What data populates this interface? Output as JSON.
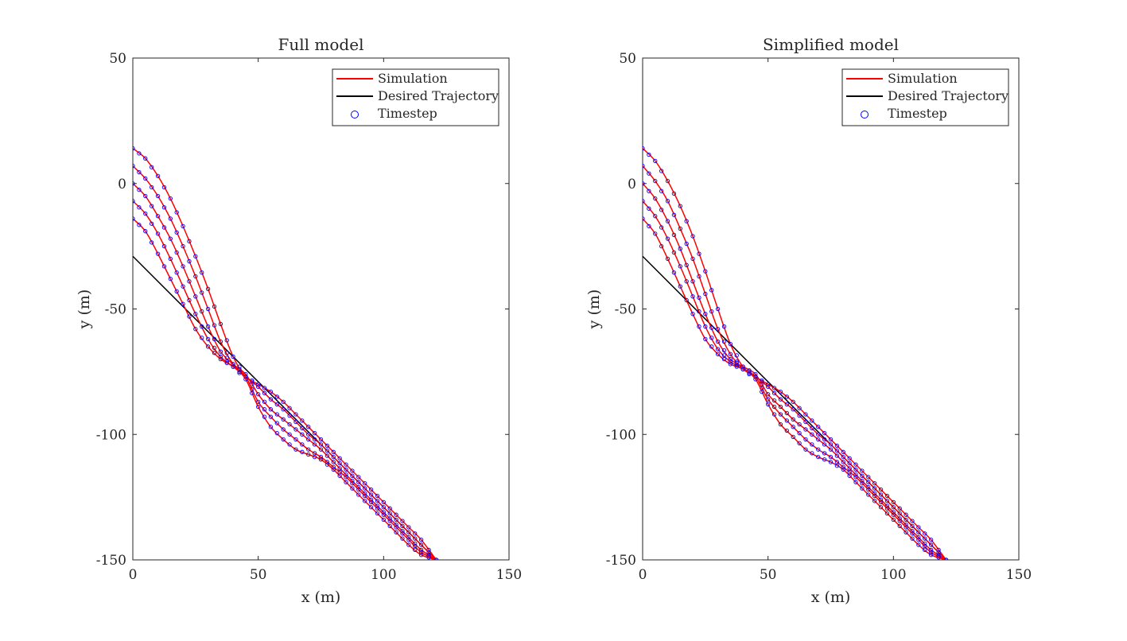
{
  "chart_data": [
    {
      "type": "line",
      "title": "Full model",
      "xlabel": "x (m)",
      "ylabel": "y (m)",
      "xlim": [
        0,
        150
      ],
      "ylim": [
        -150,
        50
      ],
      "xticks": [
        "0",
        "50",
        "100",
        "150"
      ],
      "yticks": [
        "-150",
        "-100",
        "-50",
        "0",
        "50"
      ],
      "grid": false,
      "legend_position": "top-right",
      "legend": [
        {
          "label": "Simulation",
          "color": "#ff0000",
          "style": "line"
        },
        {
          "label": "Desired Trajectory",
          "color": "#000000",
          "style": "line"
        },
        {
          "label": "Timestep",
          "color": "#0000ff",
          "style": "circle"
        }
      ],
      "desired_trajectory": {
        "x": [
          0,
          121
        ],
        "y": [
          -29,
          -150
        ]
      },
      "series": [
        {
          "x": [
            0,
            5,
            10,
            15,
            20,
            25,
            30,
            35,
            40,
            45,
            50,
            55,
            60,
            65,
            70,
            75,
            80,
            85,
            90,
            95,
            100,
            105,
            110,
            115,
            121
          ],
          "y": [
            14,
            10,
            3,
            -6,
            -17,
            -29,
            -42,
            -56,
            -69,
            -77,
            -80,
            -83,
            -87,
            -92,
            -97,
            -102,
            -107,
            -112,
            -117,
            -122,
            -127,
            -132,
            -137,
            -142,
            -150
          ]
        },
        {
          "x": [
            0,
            5,
            10,
            15,
            20,
            25,
            30,
            35,
            40,
            45,
            50,
            55,
            60,
            65,
            70,
            75,
            80,
            85,
            90,
            95,
            100,
            105,
            110,
            115,
            121
          ],
          "y": [
            7,
            2,
            -5,
            -14,
            -25,
            -37,
            -50,
            -63,
            -72,
            -77,
            -81,
            -86,
            -90,
            -95,
            -100,
            -104,
            -109,
            -114,
            -119,
            -124,
            -129,
            -134,
            -139,
            -144,
            -150
          ]
        },
        {
          "x": [
            0,
            5,
            10,
            15,
            20,
            25,
            30,
            35,
            40,
            45,
            50,
            55,
            60,
            65,
            70,
            75,
            80,
            85,
            90,
            95,
            100,
            105,
            110,
            115,
            121
          ],
          "y": [
            0,
            -5,
            -13,
            -22,
            -33,
            -45,
            -57,
            -67,
            -72,
            -76,
            -84,
            -90,
            -94,
            -98,
            -102,
            -106,
            -111,
            -116,
            -121,
            -126,
            -131,
            -136,
            -141,
            -146,
            -150
          ]
        },
        {
          "x": [
            0,
            5,
            10,
            15,
            20,
            25,
            30,
            35,
            40,
            45,
            50,
            55,
            60,
            65,
            70,
            75,
            80,
            85,
            90,
            95,
            100,
            105,
            110,
            115,
            121
          ],
          "y": [
            -7,
            -12,
            -20,
            -30,
            -41,
            -52,
            -62,
            -69,
            -73,
            -77,
            -87,
            -93,
            -98,
            -102,
            -106,
            -109,
            -113,
            -117,
            -122,
            -127,
            -132,
            -137,
            -142,
            -147,
            -150
          ]
        },
        {
          "x": [
            0,
            5,
            10,
            15,
            20,
            25,
            30,
            35,
            40,
            45,
            50,
            55,
            60,
            65,
            70,
            75,
            80,
            85,
            90,
            95,
            100,
            105,
            110,
            115,
            121
          ],
          "y": [
            -14,
            -19,
            -28,
            -38,
            -48,
            -58,
            -65,
            -70,
            -73,
            -78,
            -89,
            -97,
            -102,
            -106,
            -108,
            -110,
            -114,
            -119,
            -124,
            -129,
            -134,
            -139,
            -144,
            -148,
            -150
          ]
        }
      ]
    },
    {
      "type": "line",
      "title": "Simplified model",
      "xlabel": "x (m)",
      "ylabel": "y (m)",
      "xlim": [
        0,
        150
      ],
      "ylim": [
        -150,
        50
      ],
      "xticks": [
        "0",
        "50",
        "100",
        "150"
      ],
      "yticks": [
        "-150",
        "-100",
        "-50",
        "0",
        "50"
      ],
      "grid": false,
      "legend_position": "top-right",
      "legend": [
        {
          "label": "Simulation",
          "color": "#ff0000",
          "style": "line"
        },
        {
          "label": "Desired Trajectory",
          "color": "#000000",
          "style": "line"
        },
        {
          "label": "Timestep",
          "color": "#0000ff",
          "style": "circle"
        }
      ],
      "desired_trajectory": {
        "x": [
          0,
          121
        ],
        "y": [
          -29,
          -150
        ]
      },
      "series": [
        {
          "x": [
            0,
            5,
            10,
            15,
            20,
            25,
            30,
            35,
            40,
            45,
            50,
            55,
            60,
            65,
            70,
            75,
            80,
            85,
            90,
            95,
            100,
            105,
            110,
            115,
            121
          ],
          "y": [
            14,
            9,
            1,
            -9,
            -21,
            -35,
            -50,
            -64,
            -73,
            -77,
            -80,
            -83,
            -87,
            -92,
            -97,
            -102,
            -107,
            -112,
            -117,
            -122,
            -127,
            -132,
            -137,
            -142,
            -150
          ]
        },
        {
          "x": [
            0,
            5,
            10,
            15,
            20,
            25,
            30,
            35,
            40,
            45,
            50,
            55,
            60,
            65,
            70,
            75,
            80,
            85,
            90,
            95,
            100,
            105,
            110,
            115,
            121
          ],
          "y": [
            7,
            1,
            -7,
            -18,
            -30,
            -44,
            -58,
            -68,
            -74,
            -77,
            -81,
            -86,
            -90,
            -95,
            -100,
            -104,
            -109,
            -114,
            -119,
            -124,
            -129,
            -134,
            -139,
            -144,
            -150
          ]
        },
        {
          "x": [
            0,
            5,
            10,
            15,
            20,
            25,
            30,
            35,
            40,
            45,
            50,
            55,
            60,
            65,
            70,
            75,
            80,
            85,
            90,
            95,
            100,
            105,
            110,
            115,
            121
          ],
          "y": [
            0,
            -6,
            -15,
            -26,
            -39,
            -52,
            -63,
            -70,
            -73,
            -76,
            -84,
            -89,
            -94,
            -98,
            -102,
            -106,
            -111,
            -116,
            -121,
            -126,
            -131,
            -136,
            -141,
            -146,
            -150
          ]
        },
        {
          "x": [
            0,
            5,
            10,
            15,
            20,
            25,
            30,
            35,
            40,
            45,
            50,
            55,
            60,
            65,
            70,
            75,
            80,
            85,
            90,
            95,
            100,
            105,
            110,
            115,
            121
          ],
          "y": [
            -7,
            -13,
            -22,
            -33,
            -45,
            -57,
            -66,
            -71,
            -74,
            -77,
            -86,
            -92,
            -97,
            -102,
            -106,
            -109,
            -113,
            -117,
            -122,
            -127,
            -132,
            -137,
            -142,
            -147,
            -150
          ]
        },
        {
          "x": [
            0,
            5,
            10,
            15,
            20,
            25,
            30,
            35,
            40,
            45,
            50,
            55,
            60,
            65,
            70,
            75,
            80,
            85,
            90,
            95,
            100,
            105,
            110,
            115,
            121
          ],
          "y": [
            -14,
            -20,
            -30,
            -41,
            -52,
            -62,
            -68,
            -72,
            -74,
            -78,
            -88,
            -96,
            -101,
            -106,
            -109,
            -111,
            -114,
            -119,
            -124,
            -129,
            -134,
            -139,
            -144,
            -148,
            -150
          ]
        }
      ]
    }
  ]
}
